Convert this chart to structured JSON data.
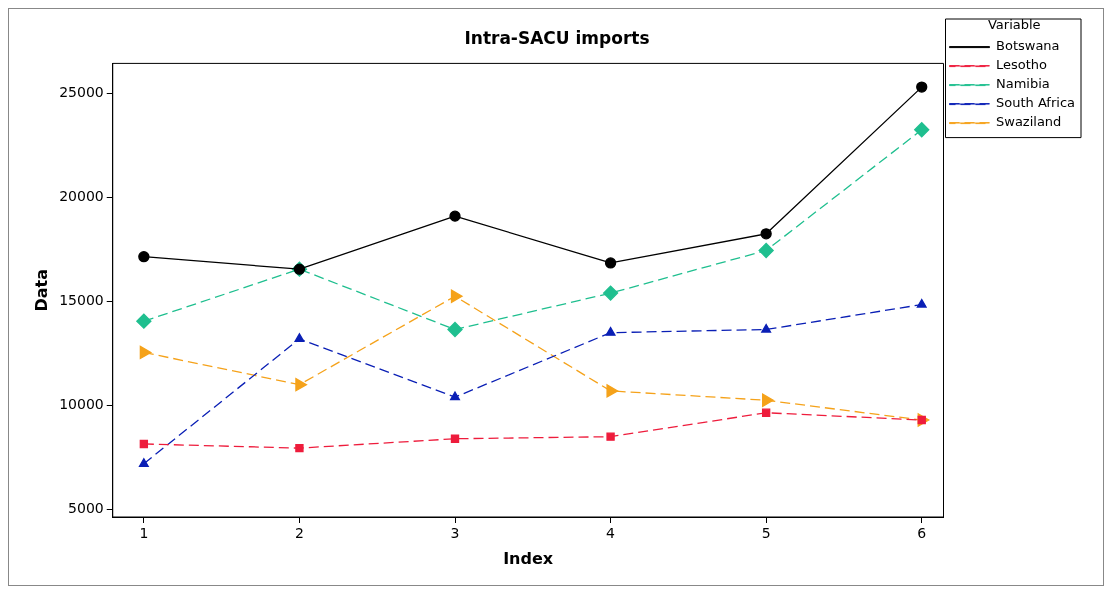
{
  "chart_data": {
    "type": "line",
    "title": "Intra-SACU imports",
    "xlabel": "Index",
    "ylabel": "Data",
    "legend_title": "Variable",
    "legend": "top right",
    "grid": false,
    "x": [
      1,
      2,
      3,
      4,
      5,
      6
    ],
    "xlim": [
      0.8,
      6.14
    ],
    "xticks": [
      1,
      2,
      3,
      4,
      5,
      6
    ],
    "ylim": [
      4640,
      26440
    ],
    "yticks": [
      5000,
      10000,
      15000,
      20000,
      25000
    ],
    "series": [
      {
        "name": "Botswana",
        "color": "#000000",
        "marker": "circle",
        "line_style": "solid",
        "values": [
          17150,
          16550,
          19100,
          16850,
          18250,
          25300
        ]
      },
      {
        "name": "Lesotho",
        "color": "#ee1c3c",
        "marker": "square",
        "line_style": "dashed",
        "values": [
          8150,
          7950,
          8400,
          8500,
          9650,
          9300
        ]
      },
      {
        "name": "Namibia",
        "color": "#1fbf8f",
        "marker": "diamond",
        "line_style": "dashed",
        "values": [
          14050,
          16550,
          13650,
          15400,
          17450,
          23250
        ]
      },
      {
        "name": "South Africa",
        "color": "#0a1fb5",
        "marker": "triangle",
        "line_style": "dashed",
        "values": [
          7200,
          13200,
          10400,
          13500,
          13650,
          14850
        ]
      },
      {
        "name": "Swaziland",
        "color": "#f5a21a",
        "marker": "triangle",
        "line_style": "dashed",
        "values": [
          12550,
          11000,
          15250,
          10700,
          10250,
          9300
        ]
      }
    ]
  }
}
